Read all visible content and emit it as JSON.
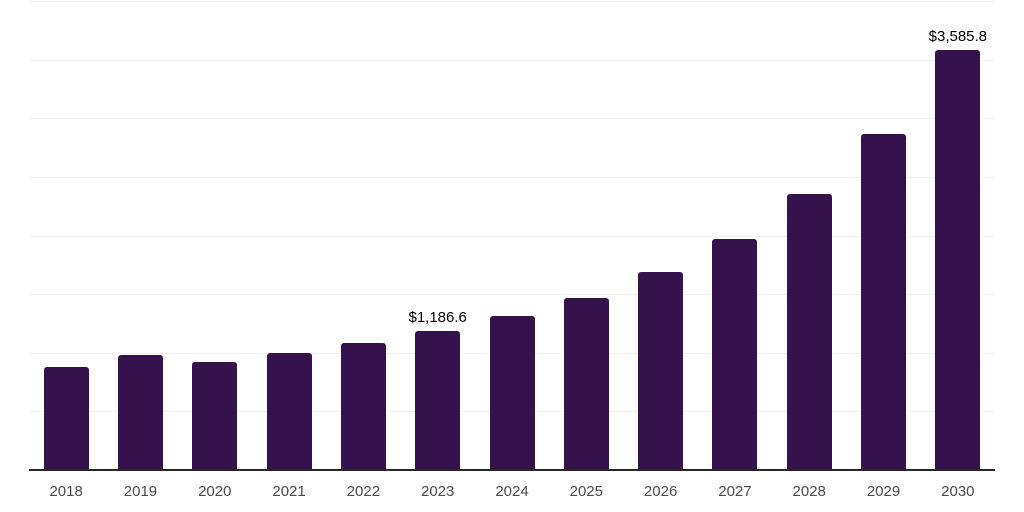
{
  "chart_data": {
    "type": "bar",
    "title": "",
    "xlabel": "",
    "ylabel": "",
    "categories": [
      "2018",
      "2019",
      "2020",
      "2021",
      "2022",
      "2023",
      "2024",
      "2025",
      "2026",
      "2027",
      "2028",
      "2029",
      "2030"
    ],
    "values": [
      880,
      980,
      920,
      1000,
      1085,
      1186.6,
      1310,
      1470,
      1690,
      1970,
      2350,
      2865,
      3585.8
    ],
    "value_labels": [
      {
        "category": "2023",
        "text": "$1,186.6"
      },
      {
        "category": "2030",
        "text": "$3,585.8"
      }
    ],
    "ylim": [
      0,
      4000
    ],
    "gridline_step": 500,
    "grid": true,
    "legend": "none",
    "y_tick_labels_visible": false,
    "bar_color": "#36124c",
    "axis_line_color": "#262626",
    "gridline_color": "#f2f2f2",
    "tick_label_color": "#4a4a4a",
    "value_label_color": "#000000"
  }
}
